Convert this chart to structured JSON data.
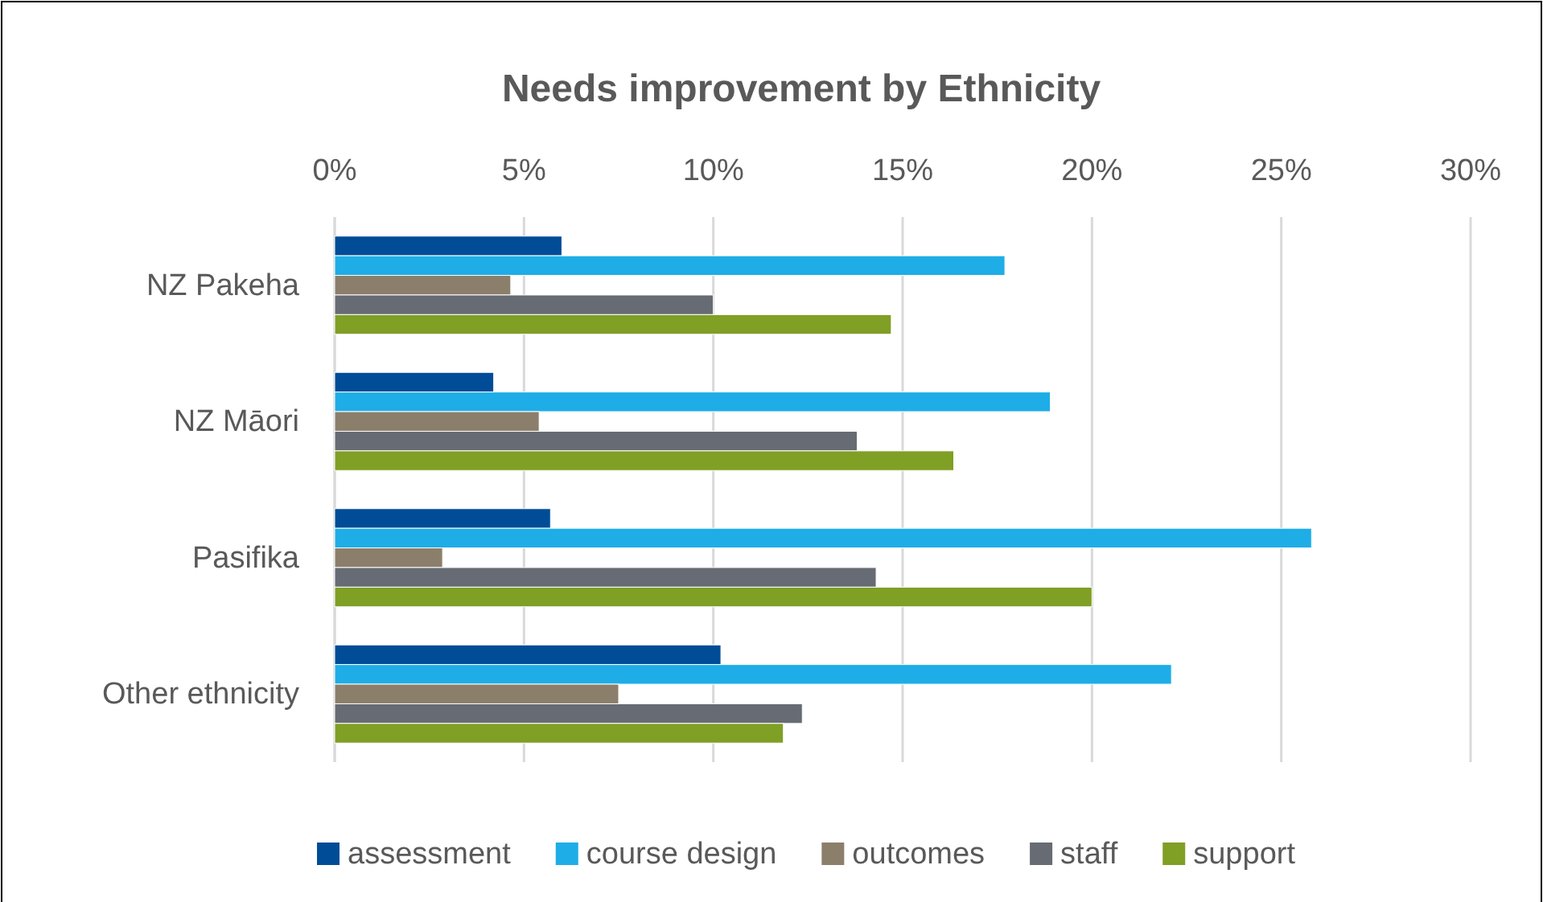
{
  "chart_data": {
    "type": "bar",
    "orientation": "horizontal",
    "title": "Needs improvement by Ethnicity",
    "categories": [
      "NZ Pakeha",
      "NZ Māori",
      "Pasifika",
      "Other ethnicity"
    ],
    "series": [
      {
        "name": "assessment",
        "color": "#004c97",
        "values": [
          6.0,
          4.2,
          5.7,
          10.2
        ]
      },
      {
        "name": "course design",
        "color": "#1eade6",
        "values": [
          17.7,
          18.9,
          25.8,
          22.1
        ]
      },
      {
        "name": "outcomes",
        "color": "#8b7f6b",
        "values": [
          4.65,
          5.4,
          2.85,
          7.5
        ]
      },
      {
        "name": "staff",
        "color": "#676b73",
        "values": [
          10.0,
          13.8,
          14.3,
          12.35
        ]
      },
      {
        "name": "support",
        "color": "#7f9f25",
        "values": [
          14.7,
          16.35,
          20.0,
          11.85
        ]
      }
    ],
    "xlim": [
      0,
      30
    ],
    "xticks": [
      {
        "value": 0,
        "label": "0%"
      },
      {
        "value": 5,
        "label": "5%"
      },
      {
        "value": 10,
        "label": "10%"
      },
      {
        "value": 15,
        "label": "15%"
      },
      {
        "value": 20,
        "label": "20%"
      },
      {
        "value": 25,
        "label": "25%"
      },
      {
        "value": 30,
        "label": "30%"
      }
    ],
    "grid": "x",
    "legend": "bottom"
  }
}
